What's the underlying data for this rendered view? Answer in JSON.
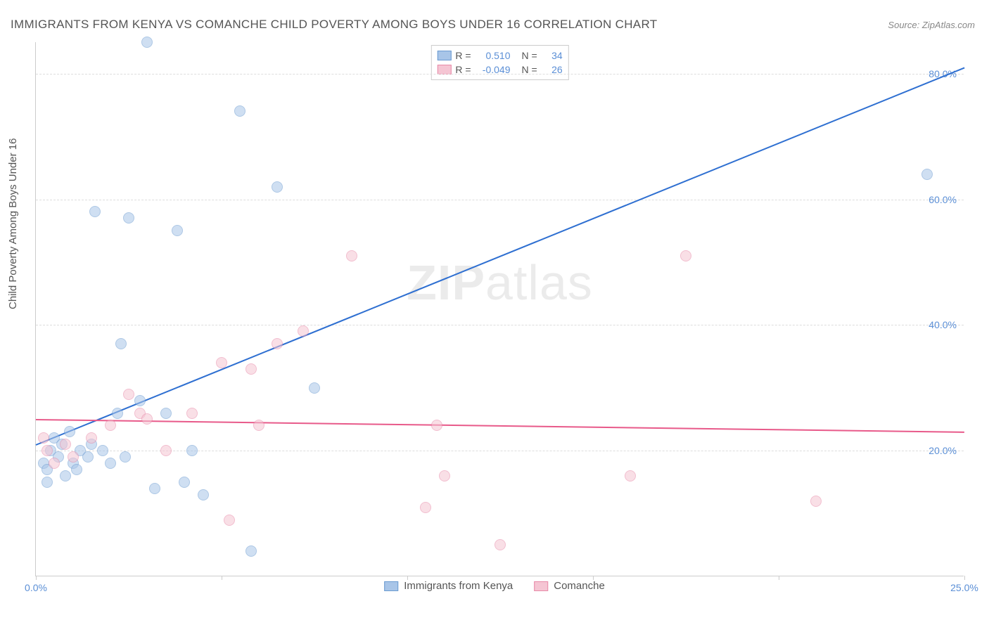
{
  "title": "IMMIGRANTS FROM KENYA VS COMANCHE CHILD POVERTY AMONG BOYS UNDER 16 CORRELATION CHART",
  "source_label": "Source:",
  "source_value": "ZipAtlas.com",
  "y_axis_label": "Child Poverty Among Boys Under 16",
  "watermark_bold": "ZIP",
  "watermark_rest": "atlas",
  "chart": {
    "type": "scatter",
    "background_color": "#ffffff",
    "grid_color": "#dddddd",
    "axis_color": "#cccccc",
    "tick_label_color": "#5b8fd6",
    "axis_label_color": "#555555",
    "xlim": [
      0,
      25
    ],
    "ylim": [
      0,
      85
    ],
    "x_ticks": [
      0,
      5,
      10,
      15,
      20,
      25
    ],
    "x_tick_labels": [
      "0.0%",
      "",
      "",
      "",
      "",
      "25.0%"
    ],
    "y_ticks": [
      20,
      40,
      60,
      80
    ],
    "y_tick_labels": [
      "20.0%",
      "40.0%",
      "60.0%",
      "80.0%"
    ],
    "point_radius": 8,
    "point_opacity": 0.55,
    "series": [
      {
        "name": "Immigrants from Kenya",
        "color_fill": "#a8c5e8",
        "color_stroke": "#6b9bd1",
        "trend_color": "#2e6fd1",
        "R": "0.510",
        "N": "34",
        "trend": {
          "x1": 0,
          "y1": 21,
          "x2": 25,
          "y2": 81
        },
        "points": [
          {
            "x": 0.2,
            "y": 18
          },
          {
            "x": 0.4,
            "y": 20
          },
          {
            "x": 0.3,
            "y": 17
          },
          {
            "x": 0.6,
            "y": 19
          },
          {
            "x": 0.5,
            "y": 22
          },
          {
            "x": 0.8,
            "y": 16
          },
          {
            "x": 0.7,
            "y": 21
          },
          {
            "x": 1.0,
            "y": 18
          },
          {
            "x": 1.2,
            "y": 20
          },
          {
            "x": 1.4,
            "y": 19
          },
          {
            "x": 1.5,
            "y": 21
          },
          {
            "x": 1.8,
            "y": 20
          },
          {
            "x": 2.0,
            "y": 18
          },
          {
            "x": 2.2,
            "y": 26
          },
          {
            "x": 2.3,
            "y": 37
          },
          {
            "x": 2.4,
            "y": 19
          },
          {
            "x": 2.5,
            "y": 57
          },
          {
            "x": 2.8,
            "y": 28
          },
          {
            "x": 3.0,
            "y": 85
          },
          {
            "x": 3.2,
            "y": 14
          },
          {
            "x": 3.5,
            "y": 26
          },
          {
            "x": 3.8,
            "y": 55
          },
          {
            "x": 4.0,
            "y": 15
          },
          {
            "x": 4.2,
            "y": 20
          },
          {
            "x": 4.5,
            "y": 13
          },
          {
            "x": 5.5,
            "y": 74
          },
          {
            "x": 5.8,
            "y": 4
          },
          {
            "x": 6.5,
            "y": 62
          },
          {
            "x": 7.5,
            "y": 30
          },
          {
            "x": 1.6,
            "y": 58
          },
          {
            "x": 0.9,
            "y": 23
          },
          {
            "x": 1.1,
            "y": 17
          },
          {
            "x": 0.3,
            "y": 15
          },
          {
            "x": 24.0,
            "y": 64
          }
        ]
      },
      {
        "name": "Comanche",
        "color_fill": "#f5c5d3",
        "color_stroke": "#e88aa8",
        "trend_color": "#e85a8a",
        "R": "-0.049",
        "N": "26",
        "trend": {
          "x1": 0,
          "y1": 25,
          "x2": 25,
          "y2": 23
        },
        "points": [
          {
            "x": 0.2,
            "y": 22
          },
          {
            "x": 0.3,
            "y": 20
          },
          {
            "x": 0.5,
            "y": 18
          },
          {
            "x": 0.8,
            "y": 21
          },
          {
            "x": 1.0,
            "y": 19
          },
          {
            "x": 1.5,
            "y": 22
          },
          {
            "x": 2.0,
            "y": 24
          },
          {
            "x": 2.5,
            "y": 29
          },
          {
            "x": 2.8,
            "y": 26
          },
          {
            "x": 3.0,
            "y": 25
          },
          {
            "x": 3.5,
            "y": 20
          },
          {
            "x": 4.2,
            "y": 26
          },
          {
            "x": 5.0,
            "y": 34
          },
          {
            "x": 5.2,
            "y": 9
          },
          {
            "x": 5.8,
            "y": 33
          },
          {
            "x": 6.0,
            "y": 24
          },
          {
            "x": 6.5,
            "y": 37
          },
          {
            "x": 7.2,
            "y": 39
          },
          {
            "x": 8.5,
            "y": 51
          },
          {
            "x": 10.5,
            "y": 11
          },
          {
            "x": 10.8,
            "y": 24
          },
          {
            "x": 11.0,
            "y": 16
          },
          {
            "x": 12.5,
            "y": 5
          },
          {
            "x": 16.0,
            "y": 16
          },
          {
            "x": 17.5,
            "y": 51
          },
          {
            "x": 21.0,
            "y": 12
          }
        ]
      }
    ]
  },
  "legend_top": {
    "R_label": "R =",
    "N_label": "N ="
  },
  "legend_bottom": {
    "items": [
      "Immigrants from Kenya",
      "Comanche"
    ]
  }
}
